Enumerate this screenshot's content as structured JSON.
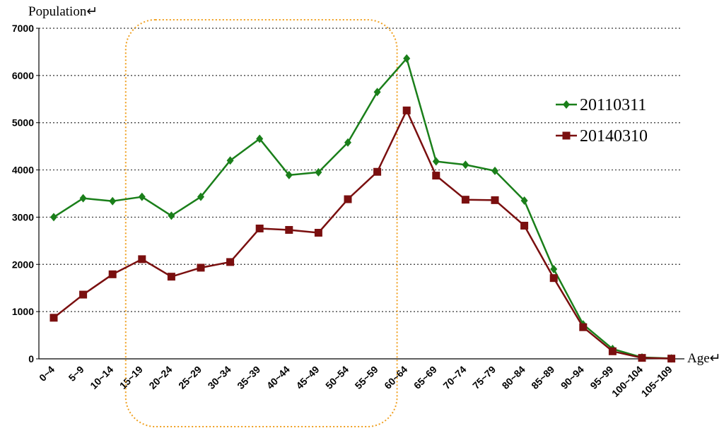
{
  "chart_data": {
    "type": "line",
    "title": "",
    "ylabel": "Population↵",
    "xlabel": "Age↵",
    "ylim": [
      0,
      7000
    ],
    "yticks": [
      0,
      1000,
      2000,
      3000,
      4000,
      5000,
      6000,
      7000
    ],
    "categories": [
      "0~4",
      "5~9",
      "10~14",
      "15~19",
      "20~24",
      "25~29",
      "30~34",
      "35~39",
      "40~44",
      "45~49",
      "50~54",
      "55~59",
      "60~64",
      "65~69",
      "70~74",
      "75~79",
      "80~84",
      "85~89",
      "90~94",
      "95~99",
      "100~104",
      "105~109"
    ],
    "series": [
      {
        "name": "20110311",
        "color": "#1a7f1a",
        "marker": "diamond",
        "values": [
          3000,
          3400,
          3340,
          3430,
          3030,
          3430,
          4200,
          4660,
          3890,
          3950,
          4580,
          5650,
          6360,
          4180,
          4110,
          3980,
          3350,
          1900,
          730,
          210,
          30,
          10
        ]
      },
      {
        "name": "20140310",
        "color": "#7a0f0f",
        "marker": "square",
        "values": [
          870,
          1360,
          1790,
          2110,
          1740,
          1930,
          2050,
          2760,
          2730,
          2670,
          3380,
          3960,
          5260,
          3880,
          3370,
          3360,
          2820,
          1710,
          670,
          160,
          20,
          5
        ]
      }
    ],
    "grid": "horizontal-dotted",
    "legend": "right",
    "highlight": {
      "style": "dotted-rounded-rect",
      "color": "#f0a020",
      "from": "15~19",
      "to": "55~59"
    }
  }
}
